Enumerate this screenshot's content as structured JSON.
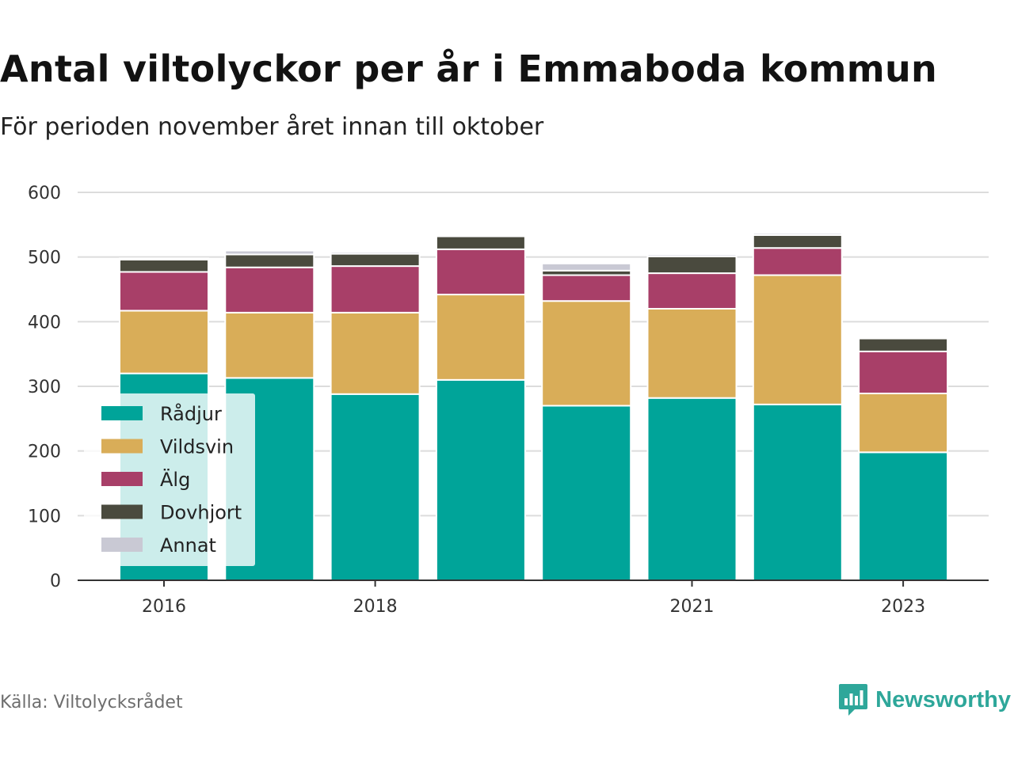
{
  "header": {
    "title": "Antal viltolyckor per år i Emmaboda kommun",
    "subtitle": "För perioden november året innan till oktober"
  },
  "footer": {
    "source": "Källa: Viltolycksrådet",
    "brand": "Newsworthy",
    "brand_icon": "newsworthy-logo-icon",
    "brand_color": "#2ea79a"
  },
  "chart_data": {
    "type": "bar",
    "stacked": true,
    "title": "Antal viltolyckor per år i Emmaboda kommun",
    "subtitle": "För perioden november året innan till oktober",
    "x": [
      2016,
      2017,
      2018,
      2019,
      2020,
      2021,
      2022,
      2023
    ],
    "x_tick_labels": [
      "2016",
      "",
      "2018",
      "",
      "",
      "2021",
      "",
      "2023"
    ],
    "ylim": [
      0,
      600
    ],
    "y_ticks": [
      0,
      100,
      200,
      300,
      400,
      500,
      600
    ],
    "grid": true,
    "legend_position": "bottom-left",
    "series": [
      {
        "name": "Rådjur",
        "color": "#00a499",
        "values": [
          320,
          313,
          288,
          310,
          270,
          282,
          272,
          198
        ]
      },
      {
        "name": "Vildsvin",
        "color": "#d9ad58",
        "values": [
          97,
          101,
          126,
          132,
          162,
          138,
          200,
          91
        ]
      },
      {
        "name": "Älg",
        "color": "#a83f68",
        "values": [
          60,
          70,
          72,
          70,
          40,
          55,
          42,
          65
        ]
      },
      {
        "name": "Dovhjort",
        "color": "#4a4a3e",
        "values": [
          19,
          20,
          19,
          20,
          7,
          26,
          20,
          20
        ]
      },
      {
        "name": "Annat",
        "color": "#c9c9d4",
        "values": [
          2,
          6,
          3,
          0,
          11,
          3,
          3,
          0
        ]
      }
    ]
  }
}
